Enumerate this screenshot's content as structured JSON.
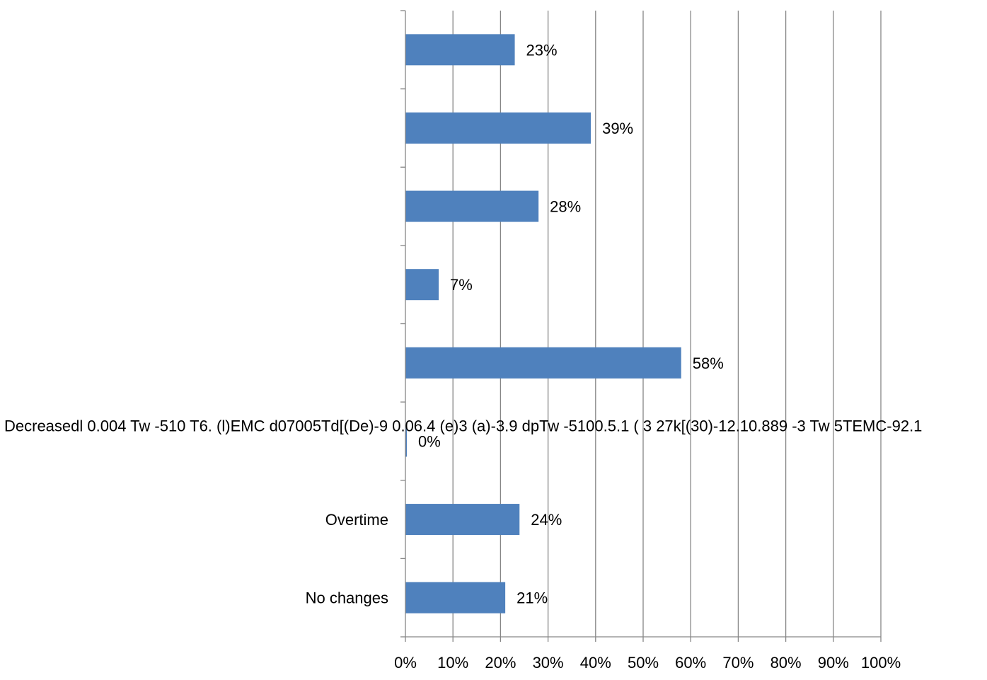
{
  "chart_data": {
    "type": "bar",
    "orientation": "horizontal",
    "title": "",
    "xlabel": "",
    "ylabel": "",
    "xlim": [
      0,
      100
    ],
    "grid": true,
    "legend": "none",
    "bar_color": "#4f81bd",
    "x_ticks": [
      "0%",
      "10%",
      "20%",
      "30%",
      "40%",
      "50%",
      "60%",
      "70%",
      "80%",
      "90%",
      "100%"
    ],
    "categories": [
      "",
      "",
      "",
      "",
      "",
      "Decreasedl 0.004 Tw -510 T6. (l)EMC d07005Td[(De)-9  0.06.4 (e)3 (a)-3.9 dpTw -5100.5.1 ( 3 27k[(30)-12.10.889 -3 Tw 5TEMC-92.1",
      "Overtime",
      "No changes"
    ],
    "values": [
      23,
      39,
      28,
      7,
      58,
      0,
      24,
      21
    ],
    "data_labels": [
      "23%",
      "39%",
      "28%",
      "7%",
      "58%",
      "0%",
      "24%",
      "21%"
    ]
  }
}
